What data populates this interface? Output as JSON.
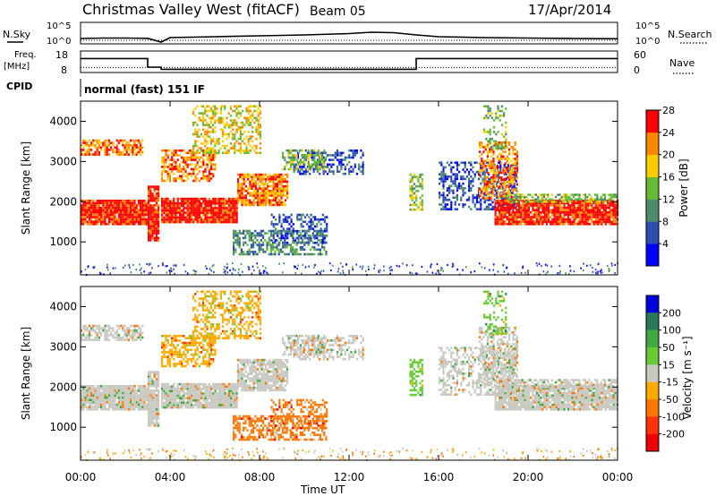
{
  "header": {
    "station": "Christmas Valley West (fitACF)",
    "beam": "Beam 05",
    "date": "17/Apr/2014"
  },
  "status_labels": {
    "nsky": "N.Sky",
    "nsearch": "N.Search",
    "freq_line1": "Freq.",
    "freq_line2": "[MHz]",
    "nave": "Nave",
    "cpid": "CPID",
    "cpid_value": "normal (fast) 151 IF"
  },
  "chart_data": [
    {
      "type": "line",
      "panel": "noise",
      "left_ticks": [
        "10^5",
        "10^0"
      ],
      "right_ticks": [
        "10^5",
        "10^0"
      ],
      "x_hours": [
        0,
        1,
        2,
        3,
        3.6,
        4,
        6,
        8,
        10,
        12,
        13,
        14,
        15,
        16,
        18,
        20,
        22,
        24
      ],
      "nsky_log": [
        0.2,
        0.3,
        0.3,
        0.25,
        -0.6,
        0.4,
        0.6,
        0.8,
        1.0,
        1.3,
        1.6,
        1.5,
        1.0,
        0.6,
        0.4,
        0.3,
        0.2,
        0.15
      ]
    },
    {
      "type": "line",
      "panel": "frequency",
      "left_ticks": [
        "18",
        "8"
      ],
      "right_ticks": [
        "60",
        "0"
      ],
      "freq_steps": [
        {
          "from": 0,
          "to": 3.0,
          "mhz": 14.5
        },
        {
          "from": 3.0,
          "to": 3.6,
          "mhz": 10.5
        },
        {
          "from": 3.6,
          "to": 15.0,
          "mhz": 9.5
        },
        {
          "from": 15.0,
          "to": 24.0,
          "mhz": 14.5
        }
      ],
      "nave_level": 14
    },
    {
      "type": "heatmap",
      "panel": "power",
      "ylabel": "Slant Range [km]",
      "yticks": [
        1000,
        2000,
        3000,
        4000
      ],
      "ylim": [
        180,
        4500
      ],
      "xlim_hours": [
        0,
        24
      ],
      "colorbar_label": "Power [dB]",
      "colorbar_ticks": [
        "4",
        "8",
        "12",
        "16",
        "20",
        "24",
        "28"
      ],
      "colors": [
        "#0000ff",
        "#2d4fb4",
        "#4c8c6c",
        "#66bb33",
        "#ffcc00",
        "#ff8800",
        "#ff0000"
      ]
    },
    {
      "type": "heatmap",
      "panel": "velocity",
      "ylabel": "Slant Range [km]",
      "yticks": [
        1000,
        2000,
        3000,
        4000
      ],
      "ylim": [
        180,
        4500
      ],
      "xlabel": "Time UT",
      "xticks": [
        "00:00",
        "04:00",
        "08:00",
        "12:00",
        "16:00",
        "20:00",
        "00:00"
      ],
      "colorbar_label": "Velocity [m s⁻¹]",
      "colorbar_ticks": [
        "200",
        "100",
        "50",
        "15",
        "-15",
        "-50",
        "-100",
        "-200"
      ],
      "colors": [
        "#0000dd",
        "#2a7a5a",
        "#3fa83f",
        "#66cc33",
        "#c8c8c0",
        "#ffaa00",
        "#ff7700",
        "#ff3300",
        "#ee0000"
      ]
    }
  ],
  "scatter_regions": [
    {
      "h0": 0.0,
      "h1": 3.0,
      "r0": 1450,
      "r1": 2050,
      "level": 6,
      "vel": 4,
      "density": 0.95
    },
    {
      "h0": 0.0,
      "h1": 2.8,
      "r0": 3150,
      "r1": 3550,
      "level": 5,
      "vel": 4,
      "density": 0.7
    },
    {
      "h0": 3.0,
      "h1": 3.5,
      "r0": 1050,
      "r1": 2400,
      "level": 6,
      "vel": 4,
      "density": 0.9
    },
    {
      "h0": 3.6,
      "h1": 7.0,
      "r0": 1500,
      "r1": 2100,
      "level": 6,
      "vel": 4,
      "density": 0.95
    },
    {
      "h0": 7.0,
      "h1": 9.2,
      "r0": 1900,
      "r1": 2700,
      "level": 5,
      "vel": 4,
      "density": 0.85
    },
    {
      "h0": 3.6,
      "h1": 6.0,
      "r0": 2500,
      "r1": 3300,
      "level": 5,
      "vel": 5,
      "density": 0.55
    },
    {
      "h0": 5.0,
      "h1": 8.0,
      "r0": 3200,
      "r1": 4400,
      "level": 4,
      "vel": 5,
      "density": 0.45
    },
    {
      "h0": 6.8,
      "h1": 11.0,
      "r0": 700,
      "r1": 1300,
      "level": 2,
      "vel": 6,
      "density": 0.55
    },
    {
      "h0": 8.5,
      "h1": 11.0,
      "r0": 1000,
      "r1": 1700,
      "level": 1,
      "vel": 6,
      "density": 0.45
    },
    {
      "h0": 9.5,
      "h1": 12.6,
      "r0": 2700,
      "r1": 3300,
      "level": 1,
      "vel": 4,
      "density": 0.45
    },
    {
      "h0": 9.0,
      "h1": 11.0,
      "r0": 2800,
      "r1": 3300,
      "level": 3,
      "vel": 4,
      "density": 0.6
    },
    {
      "h0": 14.7,
      "h1": 15.3,
      "r0": 1800,
      "r1": 2700,
      "level": 3,
      "vel": 3,
      "density": 0.55
    },
    {
      "h0": 16.0,
      "h1": 19.5,
      "r0": 1800,
      "r1": 3000,
      "level": 1,
      "vel": 4,
      "density": 0.45
    },
    {
      "h0": 18.5,
      "h1": 24.0,
      "r0": 1450,
      "r1": 2050,
      "level": 6,
      "vel": 4,
      "density": 0.9
    },
    {
      "h0": 17.8,
      "h1": 19.5,
      "r0": 2100,
      "r1": 3500,
      "level": 5,
      "vel": 4,
      "density": 0.55
    },
    {
      "h0": 18.0,
      "h1": 19.0,
      "r0": 3300,
      "r1": 4400,
      "level": 3,
      "vel": 3,
      "density": 0.35
    },
    {
      "h0": 19.0,
      "h1": 24.0,
      "r0": 2000,
      "r1": 2200,
      "level": 3,
      "vel": 4,
      "density": 0.6
    }
  ]
}
